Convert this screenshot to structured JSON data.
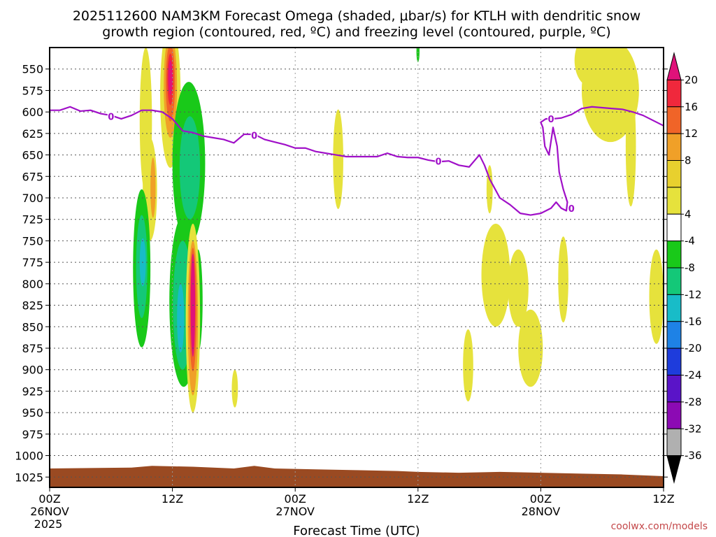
{
  "chart_data": {
    "type": "heatmap",
    "title_line1": "2025112600 NAM3KM Forecast Omega (shaded, μbar/s) for KTLH with dendritic snow",
    "title_line2": "growth region (contoured, red, ºC) and freezing level (contoured, purple, ºC)",
    "xlabel": "Forecast Time (UTC)",
    "credit": "coolwx.com/models",
    "x_ticks": [
      {
        "hour": 0,
        "label": "00Z",
        "sub": "26NOV",
        "sub2": "2025"
      },
      {
        "hour": 12,
        "label": "12Z",
        "sub": "",
        "sub2": ""
      },
      {
        "hour": 24,
        "label": "00Z",
        "sub": "27NOV",
        "sub2": ""
      },
      {
        "hour": 36,
        "label": "12Z",
        "sub": "",
        "sub2": ""
      },
      {
        "hour": 48,
        "label": "00Z",
        "sub": "28NOV",
        "sub2": ""
      },
      {
        "hour": 60,
        "label": "12Z",
        "sub": "",
        "sub2": ""
      }
    ],
    "x_range_hours": [
      0,
      60
    ],
    "y_levels_hpa": [
      550,
      575,
      600,
      625,
      650,
      675,
      700,
      725,
      750,
      775,
      800,
      825,
      850,
      875,
      900,
      925,
      950,
      975,
      1000,
      1025
    ],
    "y_range_hpa": [
      525,
      1037
    ],
    "colorbar": {
      "labels": [
        "20",
        "16",
        "12",
        "8",
        "4",
        "-4",
        "-8",
        "-12",
        "-16",
        "-20",
        "-24",
        "-28",
        "-32",
        "-36"
      ],
      "bins": [
        {
          "color": "#e0127a"
        },
        {
          "color": "#f0283c"
        },
        {
          "color": "#f06428"
        },
        {
          "color": "#f0a028"
        },
        {
          "color": "#e8d02e"
        },
        {
          "color": "#e6e23c"
        },
        {
          "color": "#ffffff"
        },
        {
          "color": "#19c919"
        },
        {
          "color": "#14c878"
        },
        {
          "color": "#18bcc8"
        },
        {
          "color": "#1e82e6"
        },
        {
          "color": "#1e3cdc"
        },
        {
          "color": "#5a14c8"
        },
        {
          "color": "#8c0ab4"
        },
        {
          "color": "#b0b0b0"
        },
        {
          "color": "#000000"
        }
      ]
    },
    "freezing_level": {
      "label": "0",
      "color": "#a010c8",
      "points": [
        [
          0,
          598
        ],
        [
          1,
          598
        ],
        [
          2,
          594
        ],
        [
          3,
          599
        ],
        [
          4,
          598
        ],
        [
          5,
          602
        ],
        [
          6,
          604
        ],
        [
          7,
          608
        ],
        [
          8,
          604
        ],
        [
          9,
          598
        ],
        [
          10,
          598
        ],
        [
          11,
          600
        ],
        [
          12,
          608
        ],
        [
          13,
          622
        ],
        [
          14,
          624
        ],
        [
          15,
          628
        ],
        [
          16,
          630
        ],
        [
          17,
          632
        ],
        [
          18,
          636
        ],
        [
          19,
          626
        ],
        [
          20,
          626
        ],
        [
          21,
          632
        ],
        [
          22,
          635
        ],
        [
          23,
          638
        ],
        [
          24,
          642
        ],
        [
          25,
          642
        ],
        [
          26,
          646
        ],
        [
          27,
          648
        ],
        [
          28,
          650
        ],
        [
          29,
          652
        ],
        [
          30,
          652
        ],
        [
          31,
          652
        ],
        [
          32,
          652
        ],
        [
          33,
          648
        ],
        [
          34,
          652
        ],
        [
          35,
          653
        ],
        [
          36,
          653
        ],
        [
          37,
          656
        ],
        [
          38,
          658
        ],
        [
          39,
          657
        ],
        [
          40,
          662
        ],
        [
          41,
          664
        ],
        [
          42,
          650
        ],
        [
          42.5,
          662
        ],
        [
          43,
          678
        ],
        [
          44,
          700
        ],
        [
          45,
          708
        ],
        [
          46,
          718
        ],
        [
          47,
          720
        ],
        [
          48,
          718
        ],
        [
          49,
          712
        ],
        [
          49.5,
          705
        ],
        [
          50,
          712
        ],
        [
          50.5,
          715
        ],
        [
          50.6,
          705
        ],
        [
          50.2,
          690
        ],
        [
          49.8,
          670
        ],
        [
          49.6,
          640
        ],
        [
          49.2,
          618
        ],
        [
          48.8,
          650
        ],
        [
          48.4,
          640
        ],
        [
          48.2,
          618
        ],
        [
          48,
          612
        ],
        [
          48.5,
          608
        ],
        [
          49.2,
          608
        ],
        [
          50,
          607
        ],
        [
          51,
          603
        ],
        [
          52,
          596
        ],
        [
          53,
          594
        ],
        [
          54,
          595
        ],
        [
          55,
          596
        ],
        [
          56,
          597
        ],
        [
          57,
          600
        ],
        [
          58,
          604
        ],
        [
          59,
          610
        ],
        [
          60,
          616
        ]
      ],
      "labels_at": [
        [
          6,
          606
        ],
        [
          20,
          628
        ],
        [
          38,
          658
        ],
        [
          49,
          609
        ],
        [
          51,
          713
        ]
      ]
    },
    "omega_blobs": [
      {
        "bin": 5,
        "hour_center": 9.4,
        "hpa_center": 610,
        "hour_radius": 0.6,
        "hpa_radius": 85
      },
      {
        "bin": 5,
        "hour_center": 9.8,
        "hpa_center": 690,
        "hour_radius": 0.7,
        "hpa_radius": 60
      },
      {
        "bin": 3,
        "hour_center": 10.1,
        "hpa_center": 688,
        "hour_radius": 0.25,
        "hpa_radius": 35
      },
      {
        "bin": 5,
        "hour_center": 11.8,
        "hpa_center": 580,
        "hour_radius": 1.0,
        "hpa_radius": 85
      },
      {
        "bin": 3,
        "hour_center": 11.8,
        "hpa_center": 570,
        "hour_radius": 0.65,
        "hpa_radius": 60
      },
      {
        "bin": 2,
        "hour_center": 11.8,
        "hpa_center": 566,
        "hour_radius": 0.45,
        "hpa_radius": 45
      },
      {
        "bin": 1,
        "hour_center": 11.8,
        "hpa_center": 562,
        "hour_radius": 0.3,
        "hpa_radius": 30
      },
      {
        "bin": 0,
        "hour_center": 11.8,
        "hpa_center": 560,
        "hour_radius": 0.2,
        "hpa_radius": 20
      },
      {
        "bin": 7,
        "hour_center": 13.6,
        "hpa_center": 660,
        "hour_radius": 1.6,
        "hpa_radius": 95
      },
      {
        "bin": 8,
        "hour_center": 13.7,
        "hpa_center": 665,
        "hour_radius": 1.0,
        "hpa_radius": 60
      },
      {
        "bin": 7,
        "hour_center": 9.0,
        "hpa_center": 782,
        "hour_radius": 0.85,
        "hpa_radius": 92
      },
      {
        "bin": 8,
        "hour_center": 9.0,
        "hpa_center": 780,
        "hour_radius": 0.55,
        "hpa_radius": 60
      },
      {
        "bin": 9,
        "hour_center": 9.1,
        "hpa_center": 775,
        "hour_radius": 0.3,
        "hpa_radius": 28
      },
      {
        "bin": 7,
        "hour_center": 13.1,
        "hpa_center": 820,
        "hour_radius": 1.4,
        "hpa_radius": 100
      },
      {
        "bin": 8,
        "hour_center": 13.0,
        "hpa_center": 825,
        "hour_radius": 0.95,
        "hpa_radius": 75
      },
      {
        "bin": 9,
        "hour_center": 12.8,
        "hpa_center": 840,
        "hour_radius": 0.35,
        "hpa_radius": 40
      },
      {
        "bin": 7,
        "hour_center": 14.5,
        "hpa_center": 820,
        "hour_radius": 0.45,
        "hpa_radius": 60
      },
      {
        "bin": 5,
        "hour_center": 14.0,
        "hpa_center": 840,
        "hour_radius": 0.7,
        "hpa_radius": 110
      },
      {
        "bin": 3,
        "hour_center": 14.0,
        "hpa_center": 840,
        "hour_radius": 0.5,
        "hpa_radius": 90
      },
      {
        "bin": 2,
        "hour_center": 14.0,
        "hpa_center": 830,
        "hour_radius": 0.35,
        "hpa_radius": 72
      },
      {
        "bin": 0,
        "hour_center": 14.0,
        "hpa_center": 825,
        "hour_radius": 0.22,
        "hpa_radius": 60
      },
      {
        "bin": 5,
        "hour_center": 18.1,
        "hpa_center": 922,
        "hour_radius": 0.3,
        "hpa_radius": 22
      },
      {
        "bin": 5,
        "hour_center": 28.2,
        "hpa_center": 655,
        "hour_radius": 0.5,
        "hpa_radius": 58
      },
      {
        "bin": 5,
        "hour_center": 43.0,
        "hpa_center": 690,
        "hour_radius": 0.3,
        "hpa_radius": 28
      },
      {
        "bin": 5,
        "hour_center": 43.6,
        "hpa_center": 790,
        "hour_radius": 1.4,
        "hpa_radius": 60
      },
      {
        "bin": 5,
        "hour_center": 45.8,
        "hpa_center": 805,
        "hour_radius": 1.0,
        "hpa_radius": 45
      },
      {
        "bin": 5,
        "hour_center": 47.0,
        "hpa_center": 875,
        "hour_radius": 1.2,
        "hpa_radius": 45
      },
      {
        "bin": 5,
        "hour_center": 40.9,
        "hpa_center": 895,
        "hour_radius": 0.5,
        "hpa_radius": 42
      },
      {
        "bin": 5,
        "hour_center": 50.2,
        "hpa_center": 795,
        "hour_radius": 0.5,
        "hpa_radius": 50
      },
      {
        "bin": 5,
        "hour_center": 54.8,
        "hpa_center": 575,
        "hour_radius": 2.8,
        "hpa_radius": 60
      },
      {
        "bin": 5,
        "hour_center": 56.8,
        "hpa_center": 640,
        "hour_radius": 0.5,
        "hpa_radius": 70
      },
      {
        "bin": 5,
        "hour_center": 52.8,
        "hpa_center": 540,
        "hour_radius": 1.5,
        "hpa_radius": 30
      },
      {
        "bin": 5,
        "hour_center": 59.3,
        "hpa_center": 815,
        "hour_radius": 0.7,
        "hpa_radius": 55
      },
      {
        "bin": 7,
        "hour_center": 36.0,
        "hpa_center": 530,
        "hour_radius": 0.15,
        "hpa_radius": 12
      }
    ],
    "terrain": {
      "color": "#9a4a22",
      "surface_hpa": [
        [
          0,
          1015
        ],
        [
          8,
          1014
        ],
        [
          10,
          1012
        ],
        [
          14,
          1013
        ],
        [
          18,
          1015
        ],
        [
          20,
          1012
        ],
        [
          22,
          1015
        ],
        [
          26,
          1016
        ],
        [
          30,
          1017
        ],
        [
          34,
          1018
        ],
        [
          36,
          1019
        ],
        [
          40,
          1020
        ],
        [
          44,
          1019
        ],
        [
          48,
          1020
        ],
        [
          52,
          1021
        ],
        [
          56,
          1022
        ],
        [
          60,
          1024
        ]
      ]
    }
  }
}
